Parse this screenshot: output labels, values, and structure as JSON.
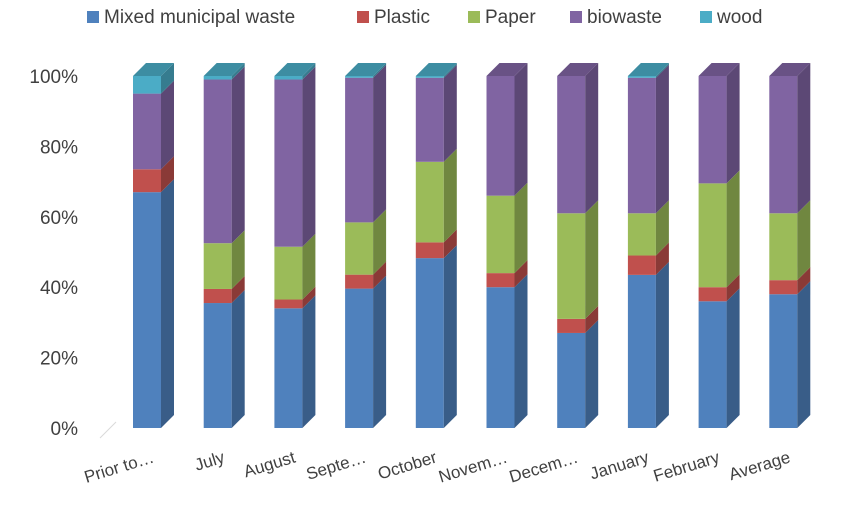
{
  "chart_data": {
    "type": "bar",
    "stacked": "percent",
    "style": "3d-column",
    "categories": [
      "Prior to…",
      "July",
      "August",
      "Septe…",
      "October",
      "Novem…",
      "Decem…",
      "January",
      "February",
      "Average"
    ],
    "series": [
      {
        "name": "Mixed municipal waste",
        "color": "#4f81bd",
        "values": [
          67,
          35.5,
          34,
          40,
          48.5,
          40,
          27,
          43.5,
          36,
          38
        ]
      },
      {
        "name": "Plastic",
        "color": "#c0504d",
        "values": [
          6.5,
          4,
          2.5,
          4,
          4.5,
          4,
          4,
          5.5,
          4,
          4
        ]
      },
      {
        "name": "Paper",
        "color": "#9bbb59",
        "values": [
          0,
          13,
          15,
          15,
          23,
          22,
          30,
          12,
          29.5,
          19
        ]
      },
      {
        "name": "biowaste",
        "color": "#8064a2",
        "values": [
          21.5,
          46.5,
          47.5,
          41.5,
          24,
          34,
          39,
          38.5,
          30.5,
          39
        ]
      },
      {
        "name": "wood",
        "color": "#4bacc6",
        "values": [
          5,
          1,
          1,
          0.5,
          0.5,
          0,
          0,
          0.5,
          0,
          0
        ]
      }
    ],
    "y_ticks": [
      "0%",
      "20%",
      "40%",
      "60%",
      "80%",
      "100%"
    ],
    "ylim": [
      0,
      100
    ],
    "legend": "top",
    "grid": false
  }
}
